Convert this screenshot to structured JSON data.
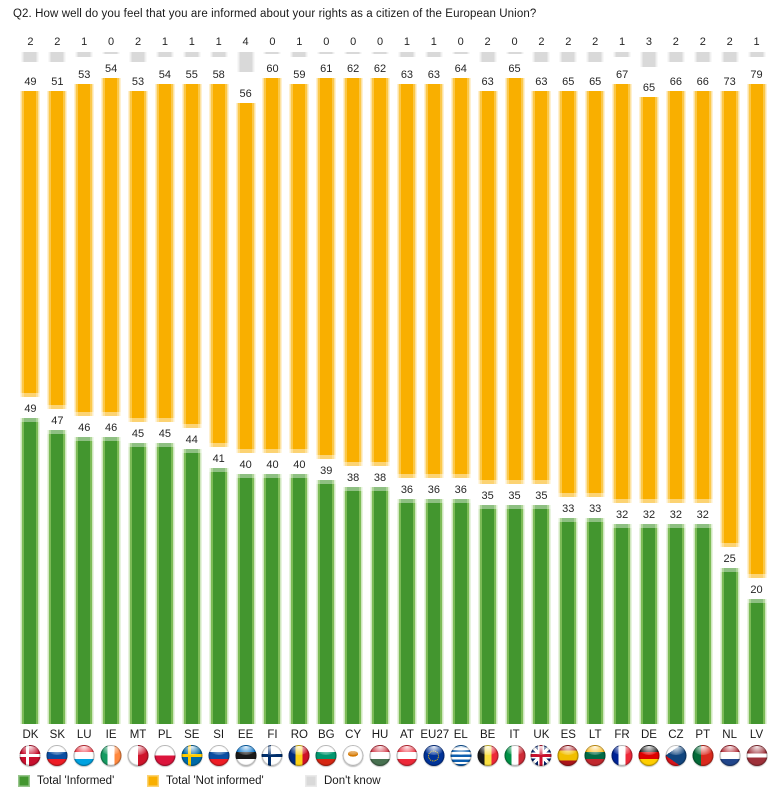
{
  "title": "Q2. How well do you feel that you are informed about your rights as a citizen of the European Union?",
  "chart_data": {
    "type": "bar",
    "stacked": true,
    "orientation": "vertical",
    "unit": "%",
    "ylim": [
      0,
      100
    ],
    "grid": false,
    "value_labels": true,
    "legend_position": "bottom",
    "categories": [
      "DK",
      "SK",
      "LU",
      "IE",
      "MT",
      "PL",
      "SE",
      "SI",
      "EE",
      "FI",
      "RO",
      "BG",
      "CY",
      "HU",
      "AT",
      "EU27",
      "EL",
      "BE",
      "IT",
      "UK",
      "ES",
      "LT",
      "FR",
      "DE",
      "CZ",
      "PT",
      "NL",
      "LV"
    ],
    "series": [
      {
        "name": "Total 'Informed'",
        "color": "#43962F",
        "values": [
          49,
          47,
          46,
          46,
          45,
          45,
          44,
          41,
          40,
          40,
          40,
          39,
          38,
          38,
          36,
          36,
          36,
          35,
          35,
          35,
          33,
          33,
          32,
          32,
          32,
          32,
          25,
          20
        ]
      },
      {
        "name": "Total 'Not informed'",
        "color": "#F9AF00",
        "values": [
          49,
          51,
          53,
          54,
          53,
          54,
          55,
          58,
          56,
          60,
          59,
          61,
          62,
          62,
          63,
          63,
          64,
          63,
          65,
          63,
          65,
          65,
          67,
          65,
          66,
          66,
          73,
          79
        ]
      },
      {
        "name": "Don't know",
        "color": "#D9D9D9",
        "values": [
          2,
          2,
          1,
          0,
          2,
          1,
          1,
          1,
          4,
          0,
          1,
          0,
          0,
          0,
          1,
          1,
          0,
          2,
          0,
          2,
          2,
          2,
          1,
          3,
          2,
          2,
          2,
          1
        ]
      }
    ],
    "flag_icons": {
      "DK": "linear-gradient(to right, rgba(0,0,0,0) 30%, #fff 30% 46%, rgba(0,0,0,0) 46%), linear-gradient(to bottom, rgba(0,0,0,0) 42%, #fff 42% 58%, rgba(0,0,0,0) 58%), linear-gradient(#C8102E, #C8102E)",
      "SK": "linear-gradient(to bottom, #fff 33%, #0B4EA2 33% 66%, #EE1C25 66%)",
      "LU": "linear-gradient(to bottom, #EF3340 33%, #fff 33% 67%, #00A2E1 67%)",
      "IE": "linear-gradient(to right, #169B62 33%, #fff 33% 67%, #FF883E 67%)",
      "MT": "linear-gradient(to right, #fff 50%, #CF142B 50%)",
      "PL": "linear-gradient(to bottom, #fff 50%, #DC143C 50%)",
      "SE": "linear-gradient(to right, rgba(0,0,0,0) 30%, #FECC00 30% 46%, rgba(0,0,0,0) 46%), linear-gradient(to bottom, rgba(0,0,0,0) 42%, #FECC00 42% 58%, rgba(0,0,0,0) 58%), linear-gradient(#006AA7, #006AA7)",
      "SI": "linear-gradient(to bottom, #fff 33%, #0B4EA2 33% 66%, #EE1C25 66%)",
      "EE": "linear-gradient(to bottom, #0072CE 33%, #1a1a1a 33% 66%, #fff 66%)",
      "FI": "linear-gradient(to right, rgba(0,0,0,0) 30%, #002F6C 30% 46%, rgba(0,0,0,0) 46%), linear-gradient(to bottom, rgba(0,0,0,0) 42%, #002F6C 42% 58%, rgba(0,0,0,0) 58%), linear-gradient(#fff, #fff)",
      "RO": "linear-gradient(to right, #002B7F 33%, #FCD116 33% 67%, #CE1126 67%)",
      "BG": "linear-gradient(to bottom, #fff 33%, #00966E 33% 66%, #D62612 66%)",
      "CY": "radial-gradient(ellipse 7px 4px at 50% 42%, #D57800 70%, rgba(0,0,0,0) 75%), linear-gradient(#fff, #fff)",
      "HU": "linear-gradient(to bottom, #CE2939 33%, #fff 33% 66%, #477050 66%)",
      "AT": "linear-gradient(to bottom, #ED2939 33%, #fff 33% 67%, #ED2939 67%)",
      "EU27": "linear-gradient(#003399, #003399)",
      "EL": "repeating-linear-gradient(to bottom, #0D5EAF 0 2.4px, #fff 2.4px 4.8px)",
      "BE": "linear-gradient(to right, #1A1A1A 33%, #FAE042 33% 67%, #ED2939 67%)",
      "IT": "linear-gradient(to right, #009246 33%, #fff 33% 67%, #CE2B37 67%)",
      "UK": "linear-gradient(to bottom, rgba(0,0,0,0) 43%, #C8102E 43% 57%, rgba(0,0,0,0) 57%), linear-gradient(to right, rgba(0,0,0,0) 43%, #C8102E 43% 57%, rgba(0,0,0,0) 57%), linear-gradient(to bottom, rgba(0,0,0,0) 36%, #fff 36% 64%, rgba(0,0,0,0) 64%), linear-gradient(to right, rgba(0,0,0,0) 36%, #fff 36% 64%, rgba(0,0,0,0) 64%), linear-gradient(45deg, rgba(0,0,0,0) 45%, #fff 45% 55%, rgba(0,0,0,0) 55%), linear-gradient(135deg, rgba(0,0,0,0) 45%, #fff 45% 55%, rgba(0,0,0,0) 55%), linear-gradient(#012169, #012169)",
      "ES": "linear-gradient(to bottom, #AA151B 26%, #F1BF00 26% 74%, #AA151B 74%)",
      "LT": "linear-gradient(to bottom, #FDB913 33%, #006A44 33% 66%, #C1272D 66%)",
      "FR": "linear-gradient(to right, #002395 33%, #fff 33% 67%, #ED2939 67%)",
      "DE": "linear-gradient(to bottom, #1A1A1A 33%, #DD0000 33% 66%, #FFCE00 66%)",
      "CZ": "conic-gradient(from 55deg at 0% 50%, #11457E 0 70deg, rgba(0,0,0,0) 70deg), linear-gradient(to bottom, #fff 50%, #D7141A 50%)",
      "PT": "linear-gradient(to right, #046A38 40%, #DA291C 40%)",
      "NL": "linear-gradient(to bottom, #AE1C28 33%, #fff 33% 66%, #21468B 66%)",
      "LV": "linear-gradient(to bottom, #9E3039 40%, #fff 40% 60%, #9E3039 60%)"
    }
  }
}
